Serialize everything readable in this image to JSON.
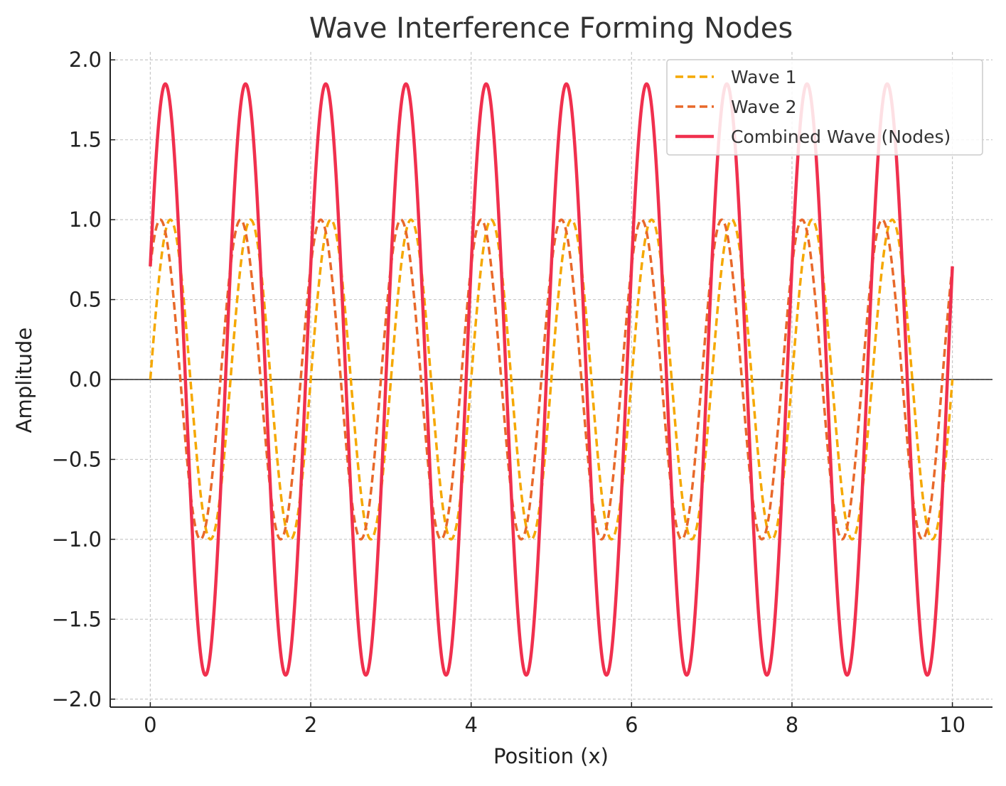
{
  "chart_data": {
    "type": "line",
    "title": "Wave Interference Forming Nodes",
    "xlabel": "Position (x)",
    "ylabel": "Amplitude",
    "xlim": [
      -0.5,
      10.5
    ],
    "ylim": [
      -2.05,
      2.05
    ],
    "x_ticks": [
      0,
      2,
      4,
      6,
      8,
      10
    ],
    "x_tick_labels": [
      "0",
      "2",
      "4",
      "6",
      "8",
      "10"
    ],
    "y_ticks": [
      2.0,
      1.5,
      1.0,
      0.5,
      0.0,
      -0.5,
      -1.0,
      -1.5,
      -2.0
    ],
    "y_tick_labels": [
      "2.0",
      "1.5",
      "1.0",
      "0.5",
      "0.0",
      "−0.5",
      "−1.0",
      "−1.5",
      "−2.0"
    ],
    "grid": true,
    "zero_line": true,
    "legend_position": "top-right",
    "x_range": [
      0,
      10
    ],
    "series": [
      {
        "name": "Wave 1",
        "style": "dashed",
        "color": "#F5A800",
        "amplitude": 1.0,
        "frequency": 1.0,
        "phase": 0.0,
        "function": "sin"
      },
      {
        "name": "Wave 2",
        "style": "dashed",
        "color": "#E8692A",
        "amplitude": 1.0,
        "frequency": 1.0,
        "phase": 0.785398,
        "function": "sin"
      },
      {
        "name": "Combined Wave (Nodes)",
        "style": "solid",
        "color": "#F0304E",
        "amplitude": 1.85,
        "frequency": 1.0,
        "phase": 0.392699,
        "function": "sin"
      }
    ]
  }
}
